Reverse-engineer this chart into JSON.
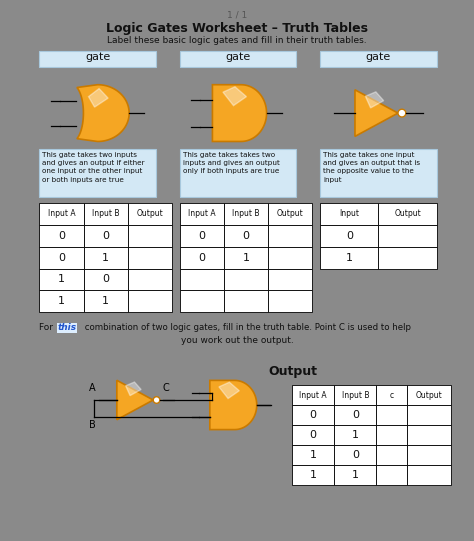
{
  "title": "Logic Gates Worksheet – Truth Tables",
  "page_label": "1 / 1",
  "subtitle": "Label these basic logic gates and fill in their truth tables.",
  "gate_label": "gate",
  "gate_bg": "#d3e8f5",
  "desc1": "This gate takes two inputs\nand gives an output if either\none input or the other input\nor both inputs are true",
  "desc2": "This gate takes takes two\ninputs and gives an output\nonly if both inputs are true",
  "desc3": "This gate takes one input\nand gives an output that is\nthe opposite value to the\ninput",
  "desc_bg": "#d3e8f5",
  "table1_headers": [
    "Input A",
    "Input B",
    "Output"
  ],
  "table1_rows": [
    [
      "0",
      "0",
      ""
    ],
    [
      "0",
      "1",
      ""
    ],
    [
      "1",
      "0",
      ""
    ],
    [
      "1",
      "1",
      ""
    ]
  ],
  "table2_headers": [
    "Input A",
    "Input B",
    "Output"
  ],
  "table2_rows": [
    [
      "0",
      "0",
      ""
    ],
    [
      "0",
      "1",
      ""
    ],
    [
      "",
      "",
      ""
    ],
    [
      "",
      "",
      ""
    ]
  ],
  "table3_headers": [
    "Input",
    "Output"
  ],
  "table3_rows": [
    [
      "0",
      ""
    ],
    [
      "1",
      ""
    ]
  ],
  "output_label": "Output",
  "table4_headers": [
    "Input A",
    "Input B",
    "c",
    "Output"
  ],
  "table4_rows": [
    [
      "0",
      "0",
      "",
      ""
    ],
    [
      "0",
      "1",
      "",
      ""
    ],
    [
      "1",
      "0",
      "",
      ""
    ],
    [
      "1",
      "1",
      "",
      ""
    ]
  ],
  "bg_color": "#8a8a8a",
  "page_bg": "#ffffff",
  "orange_main": "#f5a623",
  "orange_dark": "#c97a00",
  "text_color": "#111111",
  "this_color": "#2255cc",
  "border_color": "#a8c8dd"
}
